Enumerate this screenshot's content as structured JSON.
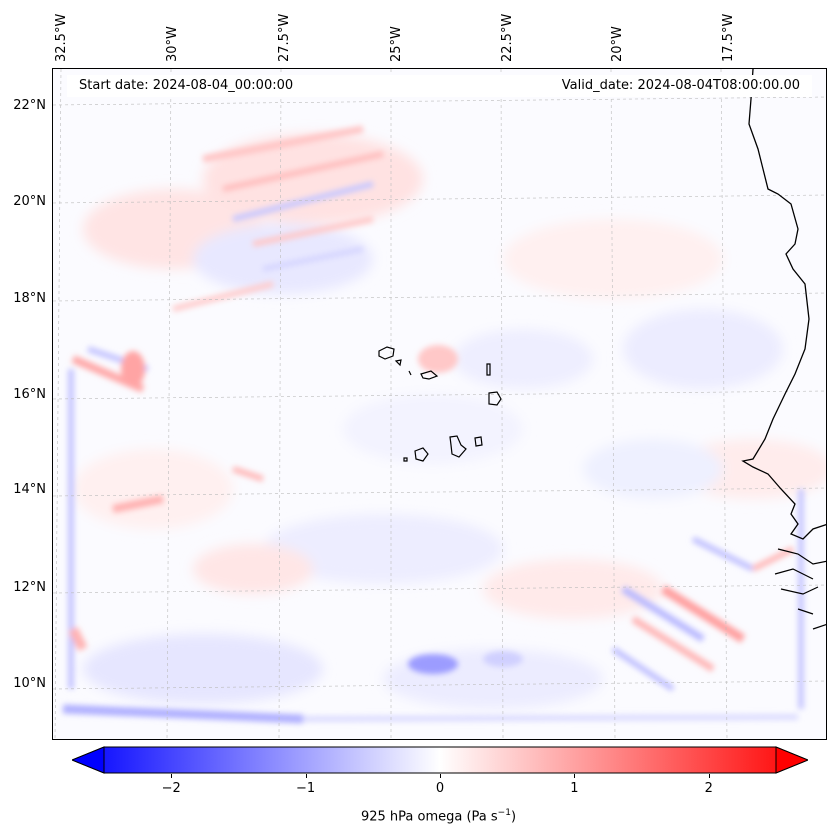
{
  "map": {
    "title_left": "Start date: 2024-08-04_00:00:00",
    "title_right": "Valid_date: 2024-08-04T08:00:00.00",
    "longitude_labels": [
      "32.5°W",
      "30°W",
      "27.5°W",
      "25°W",
      "22.5°W",
      "20°W",
      "17.5°W"
    ],
    "latitude_labels": [
      "22°N",
      "20°N",
      "18°N",
      "16°N",
      "14°N",
      "12°N",
      "10°N"
    ],
    "field": "925 hPa omega",
    "colormap": "bwr",
    "colors": {
      "negative": "#0000ff",
      "zero": "#ffffff",
      "positive": "#ff0000",
      "coast": "#000000"
    }
  },
  "colorbar": {
    "ticks": [
      "−2",
      "−1",
      "0",
      "1",
      "2"
    ],
    "tick_values": [
      -2,
      -1,
      0,
      1,
      2
    ],
    "range": [
      -2.5,
      2.5
    ],
    "label_text": "925 hPa omega (Pa s",
    "label_sup": "−1",
    "label_close": ")"
  }
}
